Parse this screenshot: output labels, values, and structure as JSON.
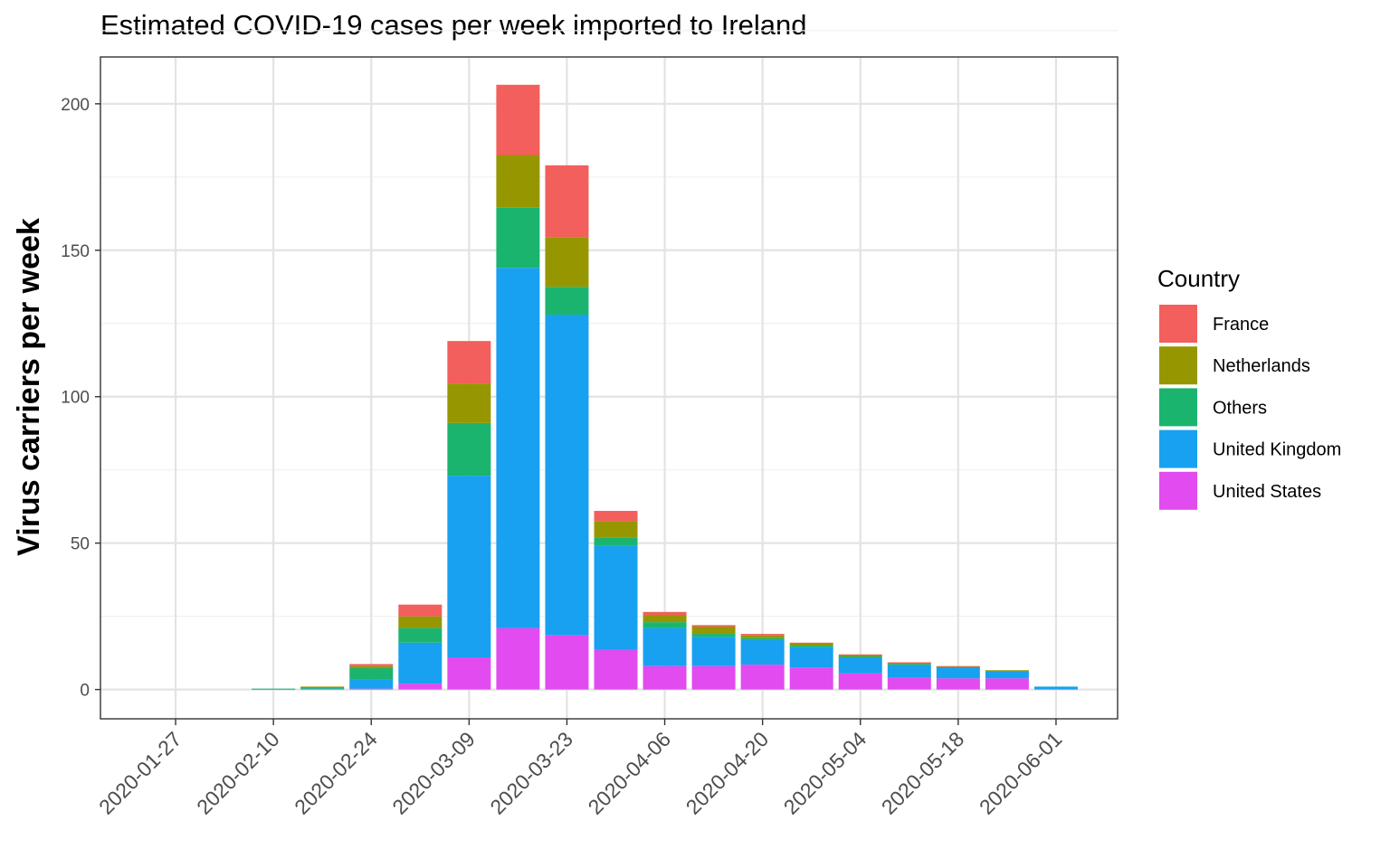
{
  "chart_data": {
    "type": "bar",
    "stacked": true,
    "title": "Estimated COVID-19 cases per week imported to Ireland",
    "xlabel": "",
    "ylabel": "Virus carriers per week",
    "ylim": [
      -10,
      216
    ],
    "yticks": [
      0,
      50,
      100,
      150,
      200
    ],
    "grid": true,
    "legend_title": "Country",
    "legend_position": "right",
    "x_tick_labels": [
      "2020-01-27",
      "2020-02-10",
      "2020-02-24",
      "2020-03-09",
      "2020-03-23",
      "2020-04-06",
      "2020-04-20",
      "2020-05-04",
      "2020-05-18",
      "2020-06-01"
    ],
    "categories": [
      "2020-01-27",
      "2020-02-03",
      "2020-02-10",
      "2020-02-17",
      "2020-02-24",
      "2020-03-02",
      "2020-03-09",
      "2020-03-16",
      "2020-03-23",
      "2020-03-30",
      "2020-04-06",
      "2020-04-13",
      "2020-04-20",
      "2020-04-27",
      "2020-05-04",
      "2020-05-11",
      "2020-05-18",
      "2020-05-25",
      "2020-06-01"
    ],
    "series": [
      {
        "name": "United States",
        "color": "#E14BF0",
        "values": [
          0,
          0,
          0,
          0,
          0.3,
          2,
          11,
          21,
          18.5,
          13.5,
          8,
          8,
          8.5,
          7.5,
          5.5,
          4,
          3.8,
          3.8,
          0
        ]
      },
      {
        "name": "United Kingdom",
        "color": "#17A1F0",
        "values": [
          0,
          0,
          0.2,
          0.3,
          3,
          14,
          62,
          123,
          109.5,
          35.5,
          13,
          10,
          8.5,
          7,
          5.5,
          4.5,
          3.8,
          2.5,
          1
        ]
      },
      {
        "name": "Others",
        "color": "#1BB46F",
        "values": [
          0,
          0,
          0.1,
          0.5,
          4,
          5,
          18,
          20.5,
          9.5,
          3,
          2,
          1,
          0.5,
          0.5,
          0.3,
          0.2,
          0.2,
          0.2,
          0
        ]
      },
      {
        "name": "Netherlands",
        "color": "#969700",
        "values": [
          0,
          0,
          0,
          0.2,
          0.7,
          4,
          13.5,
          18,
          17,
          5.5,
          2.5,
          2.5,
          1,
          0.8,
          0.5,
          0.5,
          0.1,
          0.1,
          0
        ]
      },
      {
        "name": "France",
        "color": "#F25F5C",
        "values": [
          0,
          0,
          0,
          0,
          0.7,
          4,
          14.5,
          24,
          24.5,
          3.5,
          1,
          0.5,
          0.5,
          0.2,
          0.2,
          0.1,
          0.1,
          0,
          0
        ]
      }
    ]
  }
}
